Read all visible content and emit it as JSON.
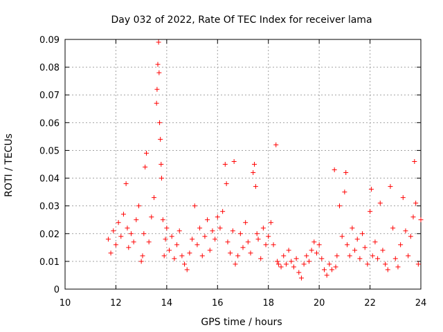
{
  "chart_data": {
    "type": "scatter",
    "title": "Day 032 of 2022, Rate Of TEC Index for receiver lama",
    "xlabel": "GPS time / hours",
    "ylabel": "ROTI / TECUs",
    "xlim": [
      10,
      24
    ],
    "ylim": [
      0,
      0.09
    ],
    "xticks": [
      10,
      12,
      14,
      16,
      18,
      20,
      22,
      24
    ],
    "xtick_labels": [
      "10",
      "12",
      "14",
      "16",
      "18",
      "20",
      "22",
      "24"
    ],
    "yticks": [
      0,
      0.01,
      0.02,
      0.03,
      0.04,
      0.05,
      0.06,
      0.07,
      0.08,
      0.09
    ],
    "ytick_labels": [
      "0",
      "0.01",
      "0.02",
      "0.03",
      "0.04",
      "0.05",
      "0.06",
      "0.07",
      "0.08",
      "0.09"
    ],
    "grid": true,
    "marker": "+",
    "color": "#ff0000",
    "series": [
      {
        "name": "ROTI",
        "x": [
          11.7,
          11.8,
          11.9,
          12.0,
          12.1,
          12.2,
          12.3,
          12.4,
          12.45,
          12.5,
          12.6,
          12.7,
          12.8,
          12.9,
          13.0,
          13.05,
          13.1,
          13.15,
          13.2,
          13.3,
          13.4,
          13.5,
          13.6,
          13.62,
          13.65,
          13.68,
          13.7,
          13.72,
          13.75,
          13.78,
          13.8,
          13.85,
          13.9,
          13.95,
          14.0,
          14.1,
          14.2,
          14.3,
          14.4,
          14.5,
          14.6,
          14.7,
          14.8,
          14.9,
          15.0,
          15.1,
          15.2,
          15.3,
          15.4,
          15.5,
          15.6,
          15.7,
          15.8,
          15.9,
          16.0,
          16.1,
          16.2,
          16.3,
          16.35,
          16.4,
          16.5,
          16.6,
          16.65,
          16.7,
          16.8,
          16.9,
          17.0,
          17.1,
          17.2,
          17.3,
          17.4,
          17.45,
          17.5,
          17.55,
          17.6,
          17.7,
          17.8,
          17.9,
          18.0,
          18.1,
          18.2,
          18.3,
          18.35,
          18.4,
          18.5,
          18.6,
          18.7,
          18.8,
          18.9,
          19.0,
          19.1,
          19.2,
          19.3,
          19.4,
          19.5,
          19.6,
          19.7,
          19.8,
          19.9,
          20.0,
          20.1,
          20.2,
          20.3,
          20.4,
          20.5,
          20.6,
          20.65,
          20.7,
          20.8,
          20.9,
          21.0,
          21.05,
          21.1,
          21.2,
          21.3,
          21.4,
          21.5,
          21.6,
          21.7,
          21.8,
          21.9,
          22.0,
          22.05,
          22.1,
          22.2,
          22.3,
          22.4,
          22.5,
          22.6,
          22.7,
          22.8,
          22.9,
          23.0,
          23.1,
          23.2,
          23.3,
          23.4,
          23.5,
          23.6,
          23.7,
          23.75,
          23.8,
          23.9,
          24.0
        ],
        "y": [
          0.018,
          0.013,
          0.021,
          0.016,
          0.024,
          0.019,
          0.027,
          0.038,
          0.022,
          0.015,
          0.02,
          0.017,
          0.025,
          0.03,
          0.01,
          0.012,
          0.02,
          0.044,
          0.049,
          0.017,
          0.026,
          0.033,
          0.067,
          0.072,
          0.081,
          0.089,
          0.078,
          0.06,
          0.054,
          0.045,
          0.04,
          0.025,
          0.012,
          0.018,
          0.022,
          0.014,
          0.019,
          0.011,
          0.016,
          0.021,
          0.012,
          0.009,
          0.007,
          0.013,
          0.018,
          0.03,
          0.016,
          0.022,
          0.012,
          0.019,
          0.025,
          0.014,
          0.021,
          0.018,
          0.026,
          0.022,
          0.028,
          0.045,
          0.038,
          0.017,
          0.013,
          0.021,
          0.046,
          0.009,
          0.012,
          0.02,
          0.015,
          0.024,
          0.017,
          0.013,
          0.042,
          0.045,
          0.037,
          0.02,
          0.018,
          0.011,
          0.022,
          0.016,
          0.019,
          0.024,
          0.016,
          0.052,
          0.01,
          0.009,
          0.008,
          0.012,
          0.009,
          0.014,
          0.01,
          0.008,
          0.011,
          0.006,
          0.004,
          0.009,
          0.012,
          0.01,
          0.014,
          0.017,
          0.013,
          0.016,
          0.011,
          0.007,
          0.005,
          0.009,
          0.007,
          0.043,
          0.008,
          0.012,
          0.03,
          0.019,
          0.035,
          0.042,
          0.016,
          0.012,
          0.022,
          0.014,
          0.018,
          0.011,
          0.02,
          0.015,
          0.009,
          0.028,
          0.036,
          0.012,
          0.017,
          0.011,
          0.031,
          0.014,
          0.009,
          0.007,
          0.037,
          0.022,
          0.011,
          0.008,
          0.016,
          0.033,
          0.021,
          0.012,
          0.019,
          0.026,
          0.046,
          0.031,
          0.009,
          0.025
        ]
      }
    ]
  }
}
